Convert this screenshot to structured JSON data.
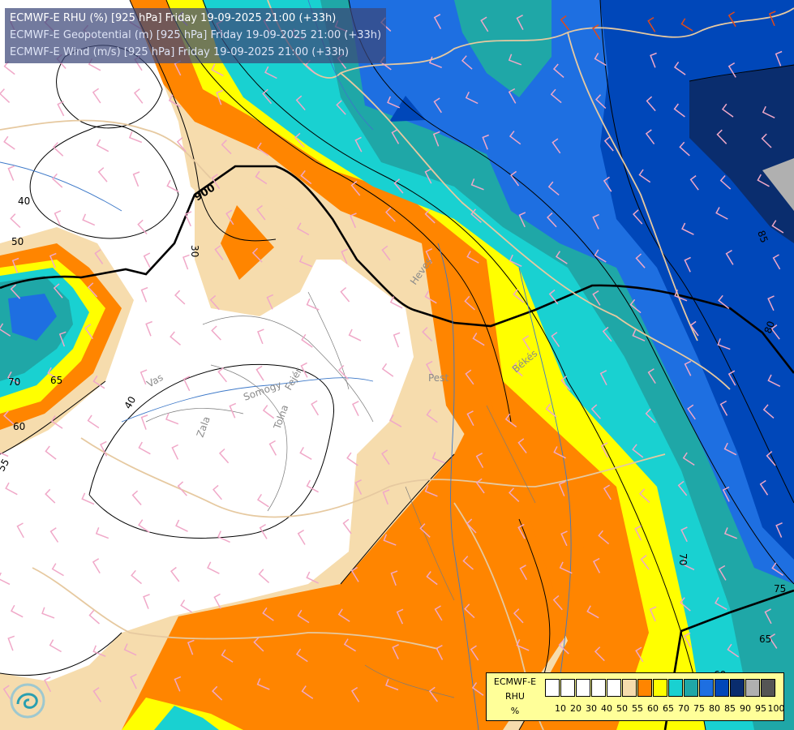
{
  "titles": [
    "ECMWF-E RHU (%) [925 hPa] Friday 19-09-2025 21:00 (+33h)",
    "ECMWF-E Geopotential (m) [925 hPa] Friday 19-09-2025 21:00 (+33h)",
    "ECMWF-E Wind (m/s) [925 hPa] Friday 19-09-2025 21:00 (+33h)"
  ],
  "legend": {
    "label_lines": [
      "ECMWF-E",
      "RHU",
      "%"
    ],
    "ticks": [
      "10",
      "20",
      "30",
      "40",
      "50",
      "55",
      "60",
      "65",
      "70",
      "75",
      "80",
      "85",
      "90",
      "95",
      "100"
    ],
    "colors": [
      "#ffffff",
      "#ffffff",
      "#ffffff",
      "#ffffff",
      "#ffffff",
      "#f6dcad",
      "#ff8500",
      "#ffff00",
      "#19d1d1",
      "#1fa7a7",
      "#1e6fe1",
      "#0047b9",
      "#0a2d6e",
      "#b0b0b0",
      "#555555"
    ]
  },
  "contour_labels": [
    "900",
    "40",
    "50",
    "30",
    "70",
    "65",
    "60",
    "55",
    "40",
    "70",
    "75",
    "65",
    "80",
    "85",
    "60"
  ],
  "place_labels": [
    "Heves",
    "Pest",
    "Békés",
    "Vas",
    "Somogy",
    "Fejér",
    "Zala",
    "Tolna"
  ],
  "colors": {
    "orange": "#ff8500",
    "yellow": "#ffff00",
    "beige": "#f6dcad",
    "cyan": "#19d1d1",
    "teal": "#1fa7a7",
    "blue": "#1e6fe1",
    "darkblue": "#0047b9",
    "navy": "#0a2d6e",
    "title_bg": "#3c4678",
    "legend_bg": "#ffff99"
  }
}
